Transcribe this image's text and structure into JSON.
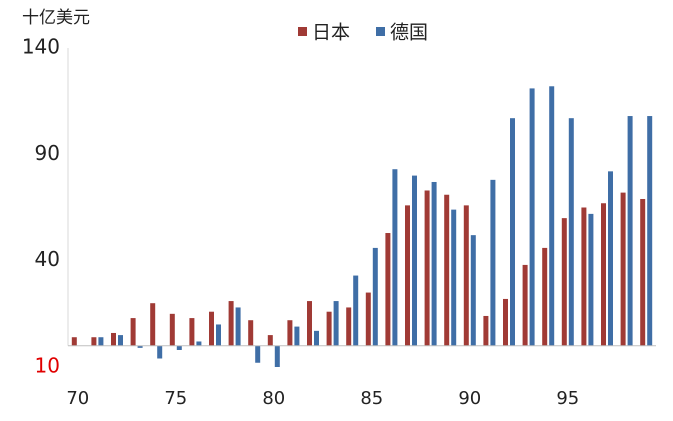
{
  "chart_data": {
    "type": "bar",
    "unit_label": "十亿美元",
    "categories": [
      "70",
      null,
      null,
      null,
      null,
      "75",
      null,
      null,
      null,
      null,
      "80",
      null,
      null,
      null,
      null,
      "85",
      null,
      null,
      null,
      null,
      "90",
      null,
      null,
      null,
      null,
      "95",
      null,
      null,
      null,
      null
    ],
    "series": [
      {
        "name": "日本",
        "color": "#a03a35",
        "values": [
          4,
          4,
          6,
          13,
          20,
          15,
          13,
          16,
          21,
          12,
          5,
          12,
          21,
          16,
          18,
          25,
          53,
          66,
          73,
          71,
          66,
          14,
          22,
          38,
          46,
          60,
          65,
          67,
          72,
          69
        ]
      },
      {
        "name": "德国",
        "color": "#3f6ea6",
        "values": [
          0,
          4,
          5,
          -1,
          -6,
          -2,
          2,
          10,
          18,
          -8,
          -10,
          9,
          7,
          21,
          33,
          46,
          83,
          80,
          77,
          64,
          52,
          78,
          107,
          121,
          122,
          107,
          62,
          82,
          108,
          108
        ]
      }
    ],
    "ylim": [
      -10,
      140
    ],
    "yticks": [
      {
        "value": -10,
        "label": "10",
        "color": "#e00000"
      },
      40,
      90,
      140
    ],
    "legend": "top"
  }
}
